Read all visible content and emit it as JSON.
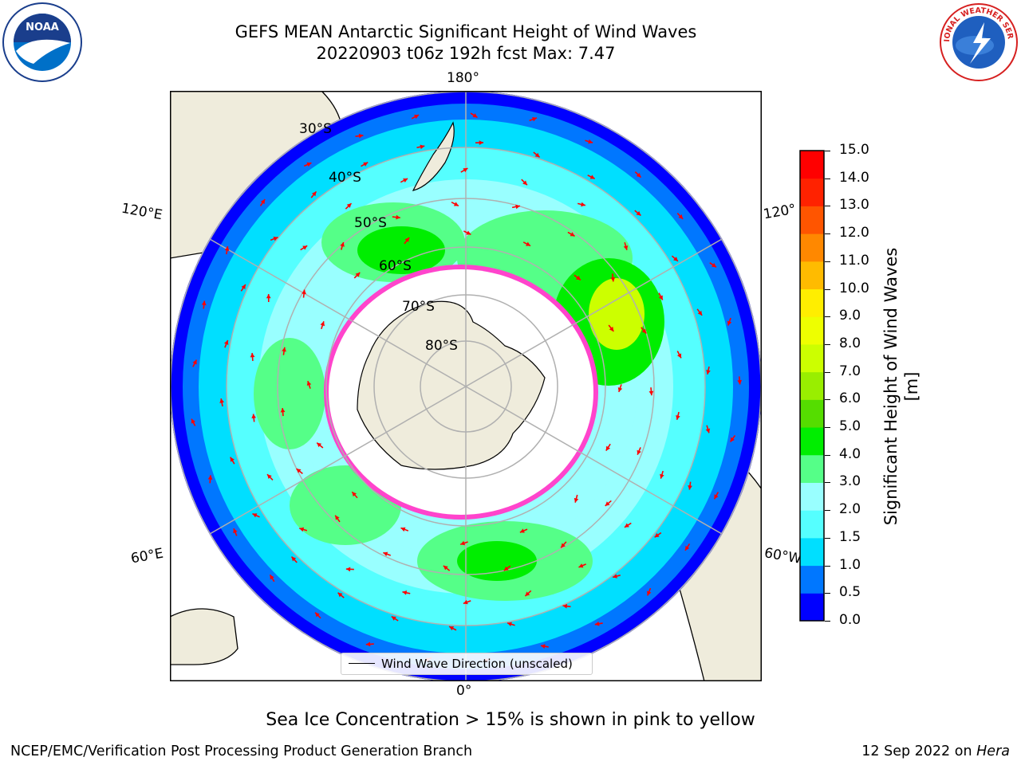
{
  "title": {
    "line1": "GEFS MEAN Antarctic Significant Height of Wind Waves",
    "line2": "20220903 t06z 192h fcst   Max: 7.47"
  },
  "logos": {
    "noaa_text": "NOAA",
    "nws_text": "NATIONAL WEATHER SERVICE"
  },
  "map": {
    "projection": "south-polar-stereographic",
    "longitude_labels": [
      "180°",
      "120°E",
      "120°",
      "60°E",
      "60°W",
      "0°"
    ],
    "latitude_labels": [
      "30°S",
      "40°S",
      "50°S",
      "60°S",
      "70°S",
      "80°S"
    ],
    "legend_label": "Wind Wave Direction (unscaled)",
    "colors": {
      "land": "#efecdc",
      "ocean_0_1": "#0000ff",
      "ocean_1_1_5": "#00ffff",
      "ocean_2_3": "#99ffff",
      "ocean_3_4": "#55ff88",
      "ocean_4_5": "#00ee00",
      "arrow": "#ff0000",
      "sea_ice": "#ff44cc",
      "grid": "#b0b0b0"
    }
  },
  "colorbar": {
    "label": "Significant Height of Wind Waves [m]",
    "ticks": [
      "0.0",
      "0.5",
      "1.0",
      "1.5",
      "2.0",
      "3.0",
      "4.0",
      "5.0",
      "6.0",
      "7.0",
      "8.0",
      "9.0",
      "10.0",
      "11.0",
      "12.0",
      "13.0",
      "14.0",
      "15.0"
    ],
    "colors": [
      "#0000ff",
      "#0077ff",
      "#00dfff",
      "#55ffff",
      "#99ffff",
      "#55ff88",
      "#00ee00",
      "#55dd00",
      "#99ee00",
      "#ccff00",
      "#eeff00",
      "#ffee00",
      "#ffbb00",
      "#ff8800",
      "#ff5500",
      "#ff2200",
      "#ff0000"
    ]
  },
  "note": "Sea Ice Concentration > 15% is shown in pink to yellow",
  "footer": {
    "left": "NCEP/EMC/Verification Post Processing Product Generation Branch",
    "date": "12 Sep 2022",
    "on": "on",
    "machine": "Hera"
  }
}
